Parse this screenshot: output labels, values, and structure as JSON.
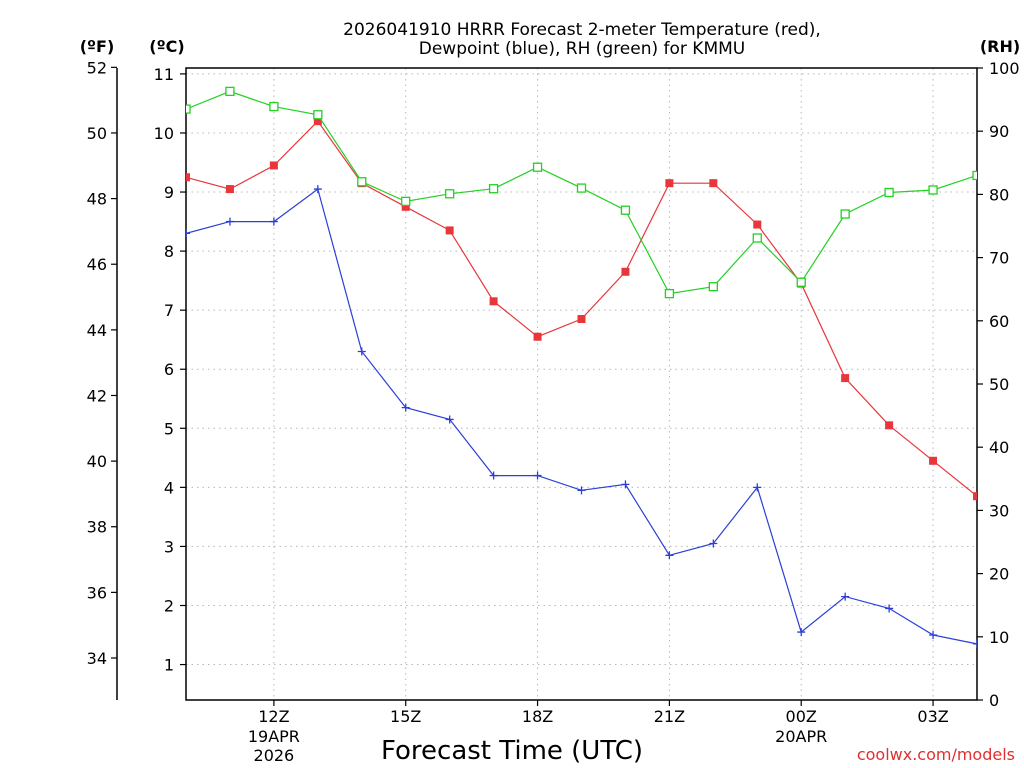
{
  "header": {
    "title_line1": "2026041910 HRRR Forecast 2-meter Temperature (red),",
    "title_line2": "Dewpoint (blue), RH (green) for KMMU"
  },
  "units": {
    "fahrenheit": "(ºF)",
    "celsius": "(ºC)",
    "rh": "(RH)"
  },
  "credit": "coolwx.com/models",
  "chart_data": {
    "type": "line",
    "title": "2026041910 HRRR Forecast 2-meter Temperature (red), Dewpoint (blue), RH (green) for KMMU",
    "xlabel": "Forecast Time (UTC)",
    "x_hours_utc": [
      10,
      11,
      12,
      13,
      14,
      15,
      16,
      17,
      18,
      19,
      20,
      21,
      22,
      23,
      24,
      25,
      26,
      27,
      28
    ],
    "xlim": [
      10,
      28
    ],
    "x_ticks": [
      {
        "hour": 12,
        "label": "12Z",
        "date1": "19APR",
        "date2": "2026"
      },
      {
        "hour": 15,
        "label": "15Z"
      },
      {
        "hour": 18,
        "label": "18Z"
      },
      {
        "hour": 21,
        "label": "21Z"
      },
      {
        "hour": 24,
        "label": "00Z",
        "date1": "20APR"
      },
      {
        "hour": 27,
        "label": "03Z"
      }
    ],
    "y_celsius": {
      "label": "(ºC)",
      "lim": [
        0.4,
        11.1
      ],
      "ticks": [
        1,
        2,
        3,
        4,
        5,
        6,
        7,
        8,
        9,
        10,
        11
      ]
    },
    "y_fahrenheit": {
      "label": "(ºF)",
      "ticks": [
        34,
        36,
        38,
        40,
        42,
        44,
        46,
        48,
        50,
        52
      ]
    },
    "y_rh": {
      "label": "(RH)",
      "lim": [
        0,
        100
      ],
      "ticks": [
        0,
        10,
        20,
        30,
        40,
        50,
        60,
        70,
        80,
        90,
        100
      ]
    },
    "series": [
      {
        "name": "Temperature",
        "axis": "celsius",
        "color": "#e8363a",
        "marker": "filled-square",
        "values": [
          9.25,
          9.05,
          9.45,
          10.2,
          9.15,
          8.75,
          8.35,
          7.15,
          6.55,
          6.85,
          7.65,
          9.15,
          9.15,
          8.45,
          7.45,
          5.85,
          5.05,
          4.45,
          3.85
        ]
      },
      {
        "name": "Dewpoint",
        "axis": "celsius",
        "color": "#2a3fd8",
        "marker": "plus",
        "values": [
          8.3,
          8.5,
          8.5,
          9.05,
          6.3,
          5.35,
          5.15,
          4.2,
          4.2,
          3.95,
          4.05,
          2.85,
          3.05,
          4.0,
          1.55,
          2.15,
          1.95,
          1.5,
          1.35
        ]
      },
      {
        "name": "RH",
        "axis": "rh",
        "color": "#22d122",
        "marker": "open-square",
        "values": [
          93.5,
          96.3,
          93.9,
          92.6,
          82.0,
          78.9,
          80.1,
          80.9,
          84.3,
          81.0,
          77.5,
          64.3,
          65.4,
          73.1,
          66.1,
          76.9,
          80.3,
          80.7,
          83.0
        ]
      }
    ]
  }
}
